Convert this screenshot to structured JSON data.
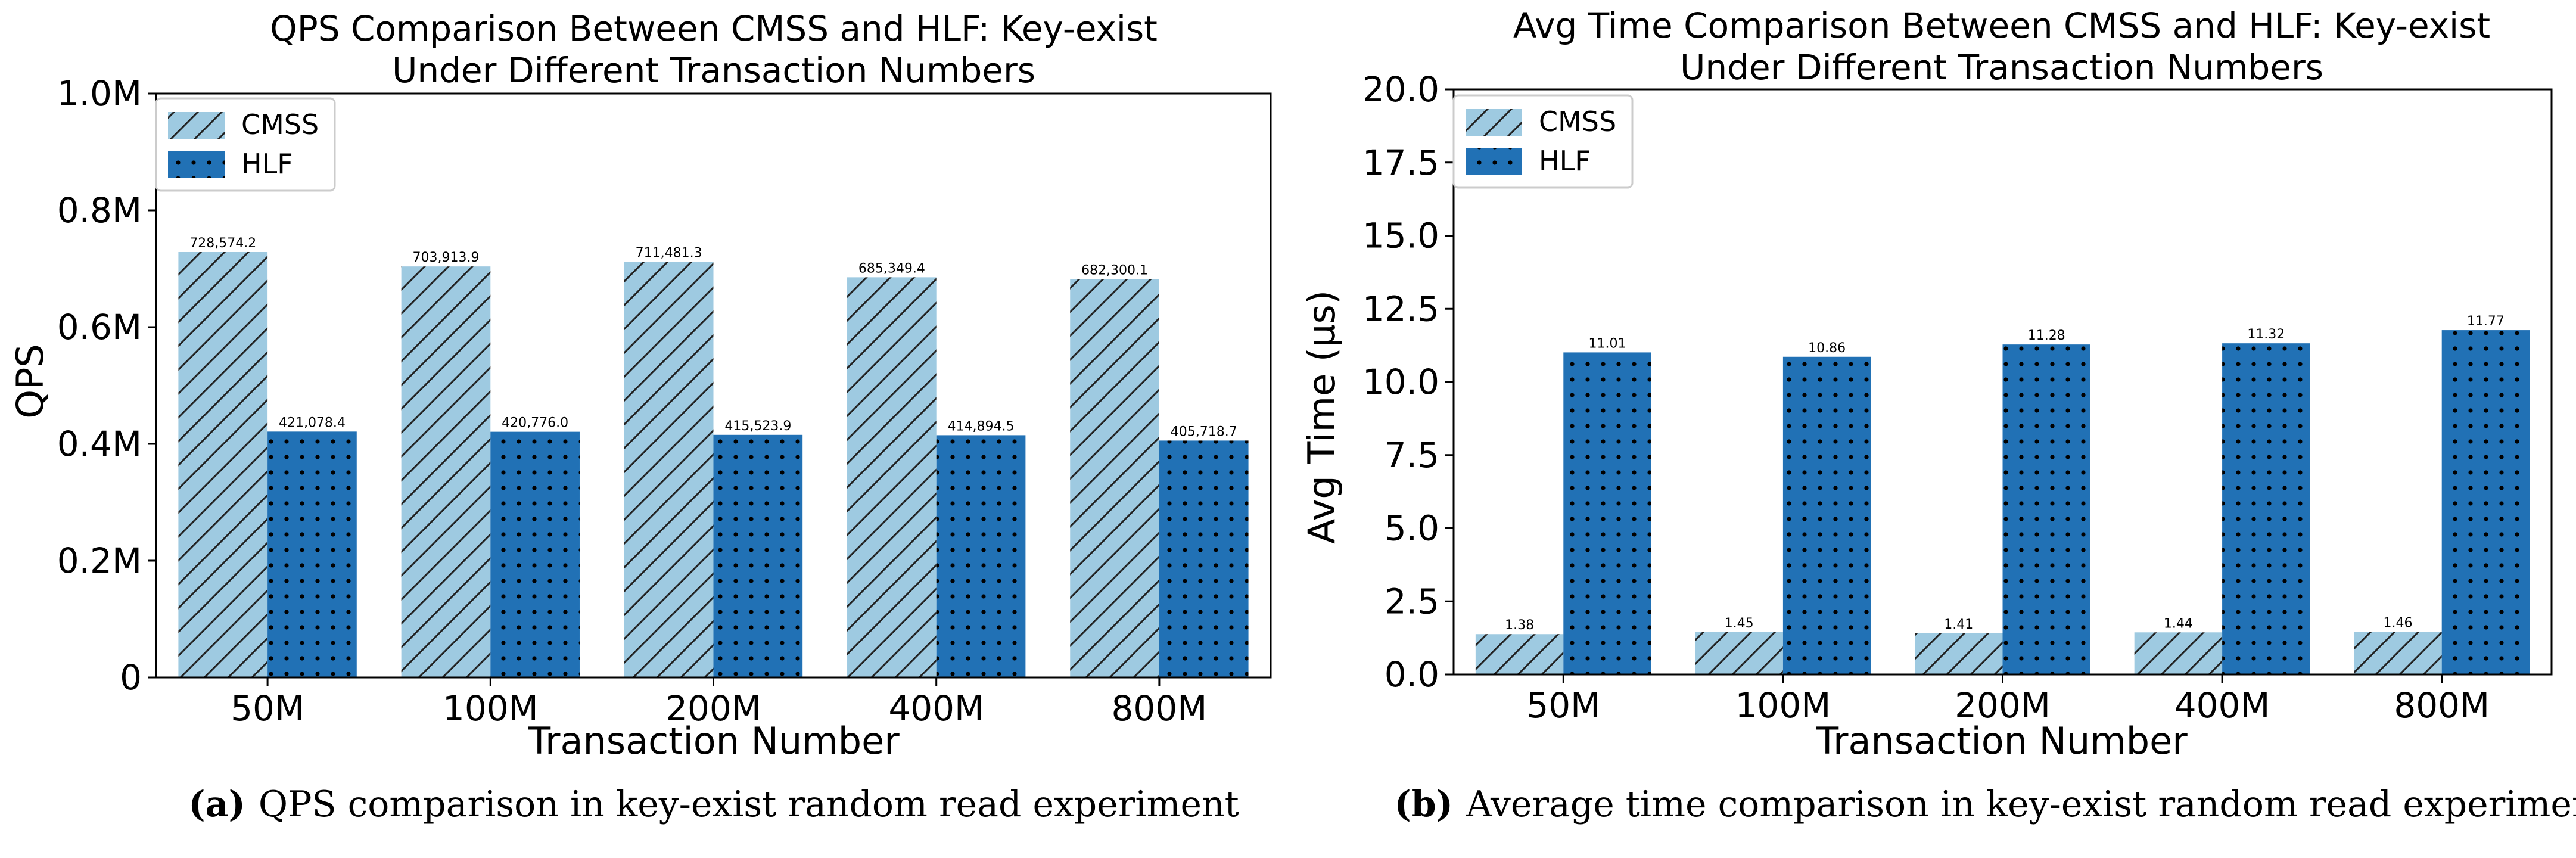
{
  "chart_data": [
    {
      "type": "bar",
      "title_lines": [
        "QPS Comparison Between CMSS and HLF: Key-exist",
        "Under Different Transaction Numbers"
      ],
      "xlabel": "Transaction Number",
      "ylabel": "QPS",
      "categories": [
        "50M",
        "100M",
        "200M",
        "400M",
        "800M"
      ],
      "ylim": [
        0,
        1000000
      ],
      "yticks": [
        0,
        200000,
        400000,
        600000,
        800000,
        1000000
      ],
      "ytick_labels": [
        "0",
        "0.2M",
        "0.4M",
        "0.6M",
        "0.8M",
        "1.0M"
      ],
      "legend_position": "top-left",
      "series": [
        {
          "name": "CMSS",
          "values": [
            728574.2,
            703913.9,
            711481.3,
            685349.4,
            682300.1
          ],
          "labels": [
            "728,574.2",
            "703,913.9",
            "711,481.3",
            "685,349.4",
            "682,300.1"
          ],
          "color": "#9ecae1",
          "pattern": "hatch"
        },
        {
          "name": "HLF",
          "values": [
            421078.4,
            420776.0,
            415523.9,
            414894.5,
            405718.7
          ],
          "labels": [
            "421,078.4",
            "420,776.0",
            "415,523.9",
            "414,894.5",
            "405,718.7"
          ],
          "color": "#2171b5",
          "pattern": "dots"
        }
      ],
      "caption_letter": "(a)",
      "caption_text": "QPS comparison in key-exist random read experiment"
    },
    {
      "type": "bar",
      "title_lines": [
        "Avg Time Comparison Between CMSS and HLF: Key-exist",
        "Under Different Transaction Numbers"
      ],
      "xlabel": "Transaction Number",
      "ylabel": "Avg Time (µs)",
      "categories": [
        "50M",
        "100M",
        "200M",
        "400M",
        "800M"
      ],
      "ylim": [
        0,
        20
      ],
      "yticks": [
        0,
        2.5,
        5,
        7.5,
        10,
        12.5,
        15,
        17.5,
        20
      ],
      "ytick_labels": [
        "0.0",
        "2.5",
        "5.0",
        "7.5",
        "10.0",
        "12.5",
        "15.0",
        "17.5",
        "20.0"
      ],
      "legend_position": "top-left",
      "series": [
        {
          "name": "CMSS",
          "values": [
            1.38,
            1.45,
            1.41,
            1.44,
            1.46
          ],
          "labels": [
            "1.38",
            "1.45",
            "1.41",
            "1.44",
            "1.46"
          ],
          "color": "#9ecae1",
          "pattern": "hatch"
        },
        {
          "name": "HLF",
          "values": [
            11.01,
            10.86,
            11.28,
            11.32,
            11.77
          ],
          "labels": [
            "11.01",
            "10.86",
            "11.28",
            "11.32",
            "11.77"
          ],
          "color": "#2171b5",
          "pattern": "dots"
        }
      ],
      "caption_letter": "(b)",
      "caption_text": "Average time comparison in key-exist random read experiment"
    }
  ]
}
